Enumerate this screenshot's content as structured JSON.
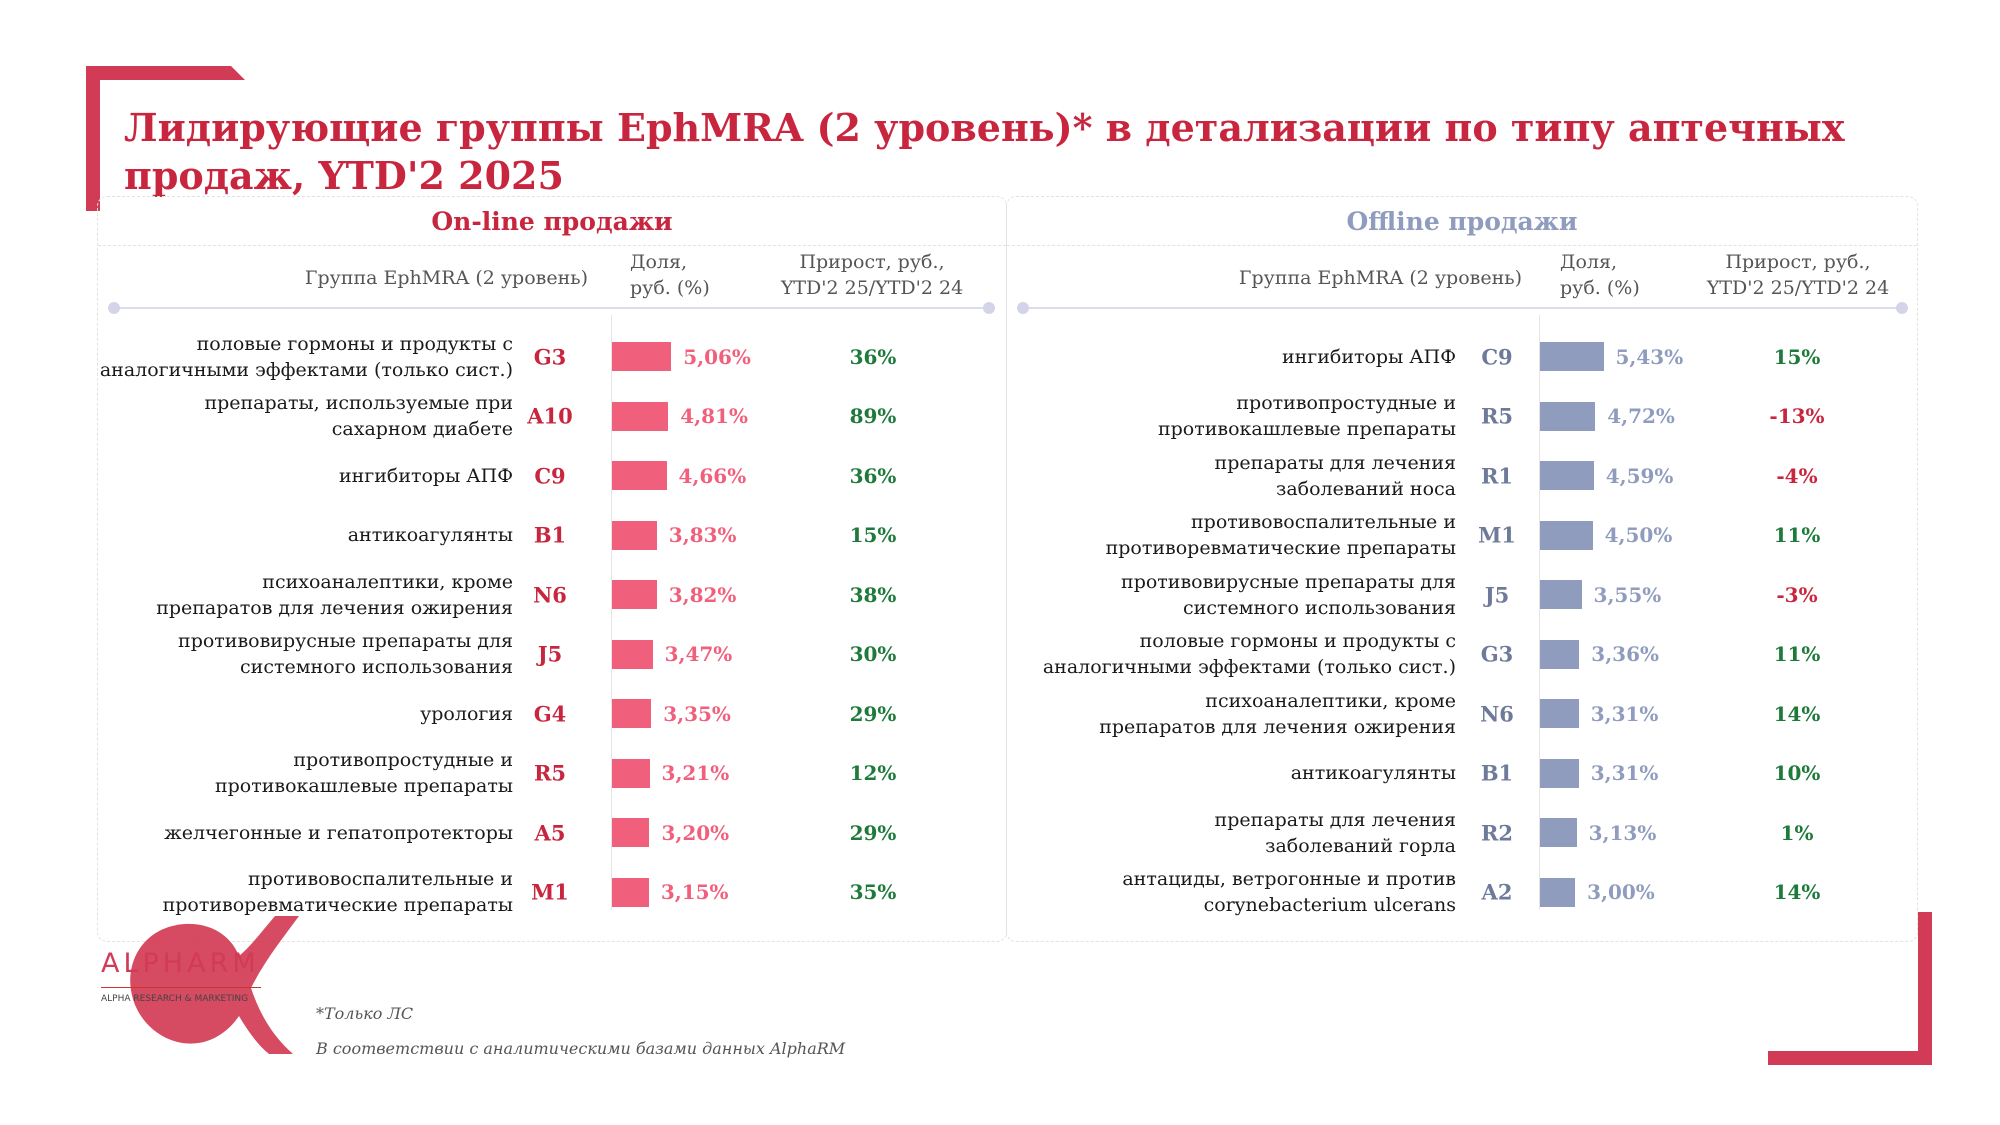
{
  "title": "Лидирующие группы EphMRA (2 уровень)* в детализации по типу аптечных продаж, YTD'2 2025",
  "headers": {
    "group": "Группа EphMRA (2 уровень)",
    "share_line1": "Доля,",
    "share_line2": "руб. (%)",
    "growth_line1": "Прирост, руб.,",
    "growth_line2": "YTD'2 25/YTD'2 24"
  },
  "colors": {
    "accent": "#d23b55",
    "online": "#f0607c",
    "offline": "#8f9cbd",
    "online_code": "#c8263f",
    "offline_code": "#6e7a99",
    "positive": "#1e7a3a",
    "negative": "#c8263f"
  },
  "footnote_1": "*Только ЛС",
  "footnote_2": "В соответствии с аналитическими базами данных AlphaRM",
  "logo": {
    "name": "ALPHARM",
    "subtitle": "ALPHA RESEARCH & MARKETING"
  },
  "chart_data": [
    {
      "type": "bar",
      "title": "On-line продажи",
      "rows": [
        {
          "name_lines": [
            "половые гормоны и продукты с",
            "аналогичными эффектами (только сист.)"
          ],
          "code": "G3",
          "share": 5.06,
          "share_label": "5,06%",
          "growth_label": "36%"
        },
        {
          "name_lines": [
            "препараты, используемые при",
            "сахарном диабете"
          ],
          "code": "A10",
          "share": 4.81,
          "share_label": "4,81%",
          "growth_label": "89%"
        },
        {
          "name_lines": [
            "ингибиторы АПФ"
          ],
          "code": "C9",
          "share": 4.66,
          "share_label": "4,66%",
          "growth_label": "36%"
        },
        {
          "name_lines": [
            "антикоагулянты"
          ],
          "code": "B1",
          "share": 3.83,
          "share_label": "3,83%",
          "growth_label": "15%"
        },
        {
          "name_lines": [
            "психоаналептики, кроме",
            "препаратов для лечения ожирения"
          ],
          "code": "N6",
          "share": 3.82,
          "share_label": "3,82%",
          "growth_label": "38%"
        },
        {
          "name_lines": [
            "противовирусные препараты для",
            "системного использования"
          ],
          "code": "J5",
          "share": 3.47,
          "share_label": "3,47%",
          "growth_label": "30%"
        },
        {
          "name_lines": [
            "урология"
          ],
          "code": "G4",
          "share": 3.35,
          "share_label": "3,35%",
          "growth_label": "29%"
        },
        {
          "name_lines": [
            "противопростудные и",
            "противокашлевые препараты"
          ],
          "code": "R5",
          "share": 3.21,
          "share_label": "3,21%",
          "growth_label": "12%"
        },
        {
          "name_lines": [
            "желчегонные и гепатопротекторы"
          ],
          "code": "A5",
          "share": 3.2,
          "share_label": "3,20%",
          "growth_label": "29%"
        },
        {
          "name_lines": [
            "противовоспалительные и",
            "противоревматические препараты"
          ],
          "code": "M1",
          "share": 3.15,
          "share_label": "3,15%",
          "growth_label": "35%"
        }
      ]
    },
    {
      "type": "bar",
      "title": "Offline продажи",
      "rows": [
        {
          "name_lines": [
            "ингибиторы АПФ"
          ],
          "code": "C9",
          "share": 5.43,
          "share_label": "5,43%",
          "growth_label": "15%"
        },
        {
          "name_lines": [
            "противопростудные и",
            "противокашлевые препараты"
          ],
          "code": "R5",
          "share": 4.72,
          "share_label": "4,72%",
          "growth_label": "-13%"
        },
        {
          "name_lines": [
            "препараты для лечения",
            "заболеваний носа"
          ],
          "code": "R1",
          "share": 4.59,
          "share_label": "4,59%",
          "growth_label": "-4%"
        },
        {
          "name_lines": [
            "противовоспалительные и",
            "противоревматические препараты"
          ],
          "code": "M1",
          "share": 4.5,
          "share_label": "4,50%",
          "growth_label": "11%"
        },
        {
          "name_lines": [
            "противовирусные препараты для",
            "системного использования"
          ],
          "code": "J5",
          "share": 3.55,
          "share_label": "3,55%",
          "growth_label": "-3%"
        },
        {
          "name_lines": [
            "половые гормоны и продукты с",
            "аналогичными эффектами (только сист.)"
          ],
          "code": "G3",
          "share": 3.36,
          "share_label": "3,36%",
          "growth_label": "11%"
        },
        {
          "name_lines": [
            "психоаналептики, кроме",
            "препаратов для лечения ожирения"
          ],
          "code": "N6",
          "share": 3.31,
          "share_label": "3,31%",
          "growth_label": "14%"
        },
        {
          "name_lines": [
            "антикоагулянты"
          ],
          "code": "B1",
          "share": 3.31,
          "share_label": "3,31%",
          "growth_label": "10%"
        },
        {
          "name_lines": [
            "препараты для лечения",
            "заболеваний горла"
          ],
          "code": "R2",
          "share": 3.13,
          "share_label": "3,13%",
          "growth_label": "1%"
        },
        {
          "name_lines": [
            "антациды, ветрогонные и против",
            "corynebacterium ulcerans"
          ],
          "code": "A2",
          "share": 3.0,
          "share_label": "3,00%",
          "growth_label": "14%"
        }
      ]
    }
  ]
}
